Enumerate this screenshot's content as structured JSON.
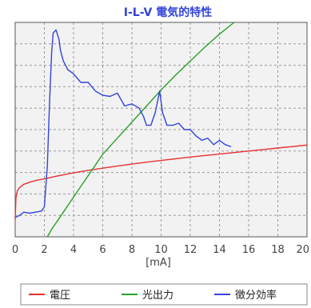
{
  "chart_data": {
    "type": "line",
    "title": "I-L-V 電気的特性",
    "xlabel": "[mA]",
    "ylabel": "",
    "xlim": [
      0,
      20
    ],
    "ylim": [
      0,
      1
    ],
    "grid": true,
    "legend_position": "bottom",
    "x_ticks": [
      "0",
      "2",
      "4",
      "6",
      "8",
      "10",
      "12",
      "14",
      "16",
      "18",
      "20"
    ],
    "colors": {
      "title": "#3344dd",
      "plot_bg": "#f2f2f2",
      "grid": "#9a9a9a"
    },
    "series": [
      {
        "name": "電圧",
        "color": "#e83030",
        "x": [
          0,
          0.05,
          0.15,
          0.3,
          0.6,
          1.0,
          1.5,
          2.0,
          3.0,
          4.0,
          5.0,
          6.0,
          7.0,
          8.0,
          9.0,
          10.0,
          11.0,
          12.0,
          13.0,
          14.0,
          15.0,
          16.0,
          17.0,
          18.0,
          19.0,
          20.0
        ],
        "values": [
          0.08,
          0.18,
          0.215,
          0.23,
          0.245,
          0.255,
          0.264,
          0.27,
          0.285,
          0.298,
          0.31,
          0.32,
          0.33,
          0.339,
          0.348,
          0.356,
          0.364,
          0.372,
          0.379,
          0.386,
          0.393,
          0.4,
          0.407,
          0.414,
          0.421,
          0.428
        ]
      },
      {
        "name": "光出力",
        "color": "#2aa02a",
        "x": [
          2.2,
          2.5,
          3.0,
          3.5,
          4.0,
          4.5,
          5.0,
          5.5,
          6.0,
          7.0,
          8.0,
          9.0,
          10.0,
          11.0,
          12.0,
          13.0,
          14.0,
          15.0
        ],
        "values": [
          0.0,
          0.035,
          0.085,
          0.135,
          0.185,
          0.235,
          0.285,
          0.335,
          0.385,
          0.46,
          0.535,
          0.61,
          0.685,
          0.755,
          0.82,
          0.885,
          0.945,
          1.0
        ]
      },
      {
        "name": "徴分効率",
        "color": "#3344dd",
        "x": [
          0,
          0.3,
          0.6,
          1.0,
          1.4,
          1.8,
          2.0,
          2.2,
          2.35,
          2.5,
          2.6,
          2.8,
          3.0,
          3.1,
          3.3,
          3.6,
          4.0,
          4.5,
          5.0,
          5.5,
          6.0,
          6.5,
          7.0,
          7.5,
          8.0,
          8.5,
          8.8,
          9.0,
          9.3,
          9.6,
          9.9,
          10.1,
          10.4,
          10.8,
          11.2,
          11.6,
          12.0,
          12.4,
          12.8,
          13.2,
          13.6,
          14.0,
          14.4,
          14.8
        ],
        "values": [
          0.09,
          0.1,
          0.115,
          0.11,
          0.115,
          0.12,
          0.14,
          0.33,
          0.62,
          0.86,
          0.95,
          0.965,
          0.92,
          0.87,
          0.82,
          0.78,
          0.76,
          0.72,
          0.72,
          0.68,
          0.66,
          0.655,
          0.67,
          0.61,
          0.62,
          0.6,
          0.56,
          0.52,
          0.52,
          0.58,
          0.68,
          0.58,
          0.52,
          0.52,
          0.53,
          0.5,
          0.5,
          0.47,
          0.45,
          0.46,
          0.43,
          0.45,
          0.43,
          0.42
        ]
      }
    ]
  }
}
